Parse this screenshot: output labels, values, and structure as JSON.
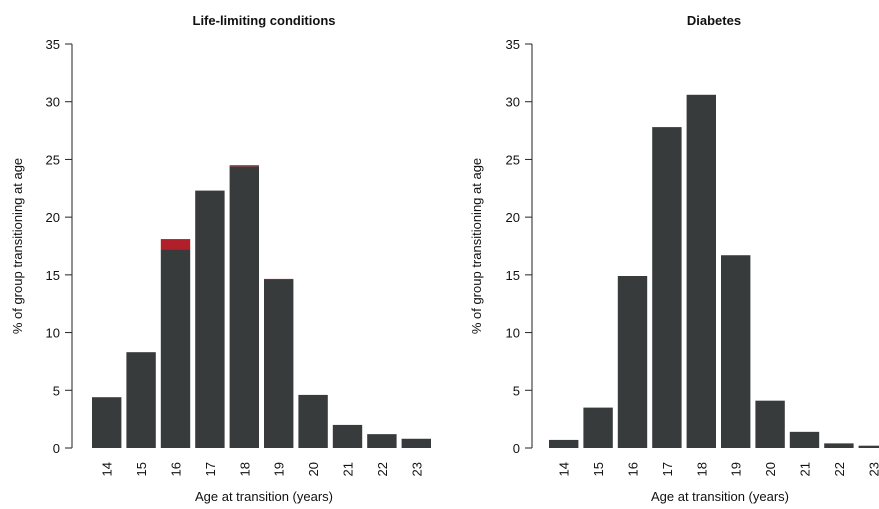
{
  "colors": {
    "bar": "#383b3b",
    "highlight": "#b11f2a",
    "axis": "#222222",
    "text": "#111111"
  },
  "chart_data": [
    {
      "type": "bar",
      "title": "Life-limiting conditions",
      "xlabel": "Age at transition (years)",
      "ylabel": "% of group transitioning at age",
      "categories": [
        "14",
        "15",
        "16",
        "17",
        "18",
        "19",
        "20",
        "21",
        "22",
        "23"
      ],
      "ylim": [
        0,
        35
      ],
      "yticks": [
        0,
        5,
        10,
        15,
        20,
        25,
        30,
        35
      ],
      "series": [
        {
          "color": "#383b3b",
          "values": [
            4.4,
            8.3,
            17.2,
            22.3,
            24.4,
            14.6,
            4.6,
            2.0,
            1.2,
            0.8
          ]
        },
        {
          "color": "#b11f2a",
          "values": [
            0,
            0,
            0.9,
            0,
            0.1,
            0.05,
            0,
            0,
            0,
            0
          ]
        }
      ]
    },
    {
      "type": "bar",
      "title": "Diabetes",
      "xlabel": "Age at transition (years)",
      "ylabel": "% of group transitioning at age",
      "categories": [
        "14",
        "15",
        "16",
        "17",
        "18",
        "19",
        "20",
        "21",
        "22",
        "23"
      ],
      "ylim": [
        0,
        35
      ],
      "yticks": [
        0,
        5,
        10,
        15,
        20,
        25,
        30,
        35
      ],
      "series": [
        {
          "color": "#383b3b",
          "values": [
            0.7,
            3.5,
            14.9,
            27.8,
            30.6,
            16.7,
            4.1,
            1.4,
            0.4,
            0.2
          ]
        }
      ]
    }
  ]
}
